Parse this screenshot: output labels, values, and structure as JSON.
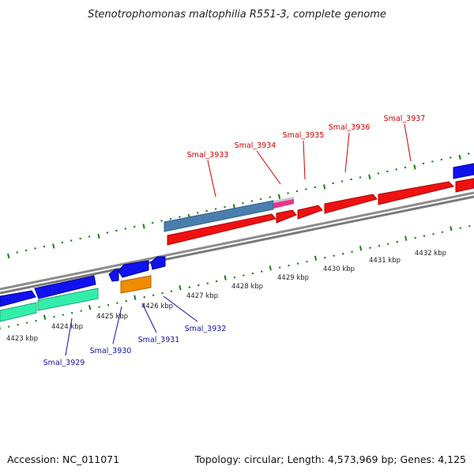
{
  "title": "Stenotrophomonas maltophilia R551-3, complete genome",
  "footer": {
    "accession": "Accession: NC_011071",
    "summary": "Topology: circular; Length: 4,573,969 bp; Genes: 4,125"
  },
  "colors": {
    "backbone": "#8a8a8a",
    "tick": "#1e7a1e",
    "forward_label": "#cc0000",
    "reverse_label": "#1111aa",
    "forward_cds": "#ee1111",
    "reverse_cds": "#1111ee",
    "steelblue": "#4a7fad",
    "pink": "#e8338c",
    "gray": "#c8c8c8",
    "orange": "#f08c00",
    "aqua": "#33eeaa"
  },
  "scale_ticks": [
    "4423 kbp",
    "4424 kbp",
    "4425 kbp",
    "4426 kbp",
    "4427 kbp",
    "4428 kbp",
    "4429 kbp",
    "4430 kbp",
    "4431 kbp",
    "4432 kbp"
  ],
  "forward_labels": [
    "Smal_3933",
    "Smal_3934",
    "Smal_3935",
    "Smal_3936",
    "Smal_3937"
  ],
  "reverse_labels": [
    "Smal_3929",
    "Smal_3930",
    "Smal_3931",
    "Smal_3932"
  ]
}
